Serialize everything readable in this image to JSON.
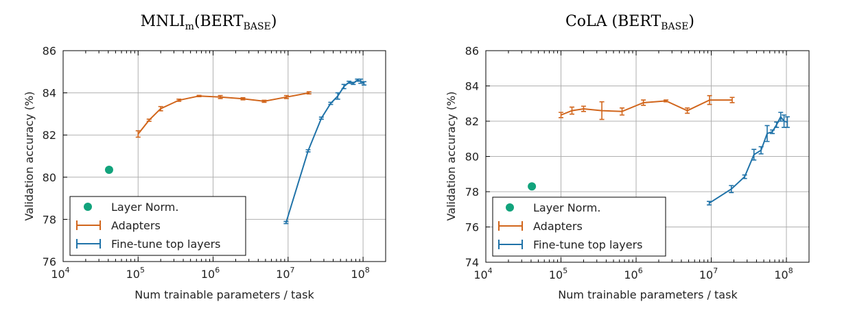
{
  "chart_data": [
    {
      "type": "line",
      "title": "MNLI",
      "title_sub": "m",
      "title_rest": "(BERT",
      "title_sub2": "BASE",
      "title_end": ")",
      "xlabel": "Num trainable parameters / task",
      "ylabel": "Validation accuracy (%)",
      "xscale": "log",
      "xlim": [
        10000,
        200000000
      ],
      "ylim": [
        76,
        86
      ],
      "yticks": [
        "76",
        "78",
        "80",
        "82",
        "84",
        "86"
      ],
      "xticks": [
        {
          "base": "10",
          "exp": "4"
        },
        {
          "base": "10",
          "exp": "5"
        },
        {
          "base": "10",
          "exp": "6"
        },
        {
          "base": "10",
          "exp": "7"
        },
        {
          "base": "10",
          "exp": "8"
        }
      ],
      "grid": true,
      "legend_position": "lower-left",
      "series": [
        {
          "name": "Layer Norm.",
          "color": "#12a37c",
          "style": "point",
          "x": [
            41000
          ],
          "y": [
            80.35
          ],
          "err": [
            0
          ]
        },
        {
          "name": "Adapters",
          "color": "#d1651b",
          "style": "line-errorbar",
          "x": [
            100000,
            140000,
            200000,
            350000,
            650000,
            1250000,
            2500000,
            4800000,
            9500000,
            19000000
          ],
          "y": [
            82.05,
            82.7,
            83.25,
            83.65,
            83.85,
            83.8,
            83.72,
            83.6,
            83.8,
            84.0
          ],
          "err": [
            0.15,
            0.05,
            0.1,
            0.05,
            0.03,
            0.07,
            0.05,
            0.05,
            0.07,
            0.05
          ]
        },
        {
          "name": "Fine-tune top layers",
          "color": "#1f72a8",
          "style": "line-errorbar",
          "x": [
            9400000,
            18500000,
            27800000,
            37000000,
            46000000,
            55500000,
            65000000,
            74000000,
            84000000,
            93000000,
            103000000
          ],
          "y": [
            77.85,
            81.25,
            82.8,
            83.5,
            83.85,
            84.3,
            84.5,
            84.45,
            84.6,
            84.55,
            84.45
          ],
          "err": [
            0.05,
            0.05,
            0.05,
            0.05,
            0.15,
            0.1,
            0.05,
            0.05,
            0.05,
            0.1,
            0.08
          ]
        }
      ]
    },
    {
      "type": "line",
      "title": "CoLA (BERT",
      "title_sub": "BASE",
      "title_end": ")",
      "xlabel": "Num trainable parameters / task",
      "ylabel": "Validation accuracy (%)",
      "xscale": "log",
      "xlim": [
        10000,
        200000000
      ],
      "ylim": [
        74,
        86
      ],
      "yticks": [
        "74",
        "76",
        "78",
        "80",
        "82",
        "84",
        "86"
      ],
      "xticks": [
        {
          "base": "10",
          "exp": "4"
        },
        {
          "base": "10",
          "exp": "5"
        },
        {
          "base": "10",
          "exp": "6"
        },
        {
          "base": "10",
          "exp": "7"
        },
        {
          "base": "10",
          "exp": "8"
        }
      ],
      "grid": true,
      "legend_position": "lower-left",
      "series": [
        {
          "name": "Layer Norm.",
          "color": "#12a37c",
          "style": "point",
          "x": [
            41000
          ],
          "y": [
            78.3
          ],
          "err": [
            0
          ]
        },
        {
          "name": "Adapters",
          "color": "#d1651b",
          "style": "line-errorbar",
          "x": [
            100000,
            140000,
            200000,
            350000,
            650000,
            1250000,
            2500000,
            4800000,
            9500000,
            19000000
          ],
          "y": [
            82.35,
            82.6,
            82.7,
            82.6,
            82.55,
            83.05,
            83.15,
            82.6,
            83.2,
            83.2
          ],
          "err": [
            0.15,
            0.2,
            0.15,
            0.5,
            0.2,
            0.15,
            0.05,
            0.15,
            0.25,
            0.15
          ]
        },
        {
          "name": "Fine-tune top layers",
          "color": "#1f72a8",
          "style": "line-errorbar",
          "x": [
            9400000,
            18500000,
            27800000,
            37000000,
            46000000,
            55500000,
            65000000,
            74000000,
            84000000,
            93000000,
            103000000
          ],
          "y": [
            77.35,
            78.15,
            78.85,
            80.1,
            80.35,
            81.3,
            81.4,
            81.8,
            82.25,
            82.0,
            81.95
          ],
          "err": [
            0.1,
            0.2,
            0.1,
            0.3,
            0.2,
            0.45,
            0.1,
            0.15,
            0.25,
            0.35,
            0.3
          ]
        }
      ]
    }
  ]
}
